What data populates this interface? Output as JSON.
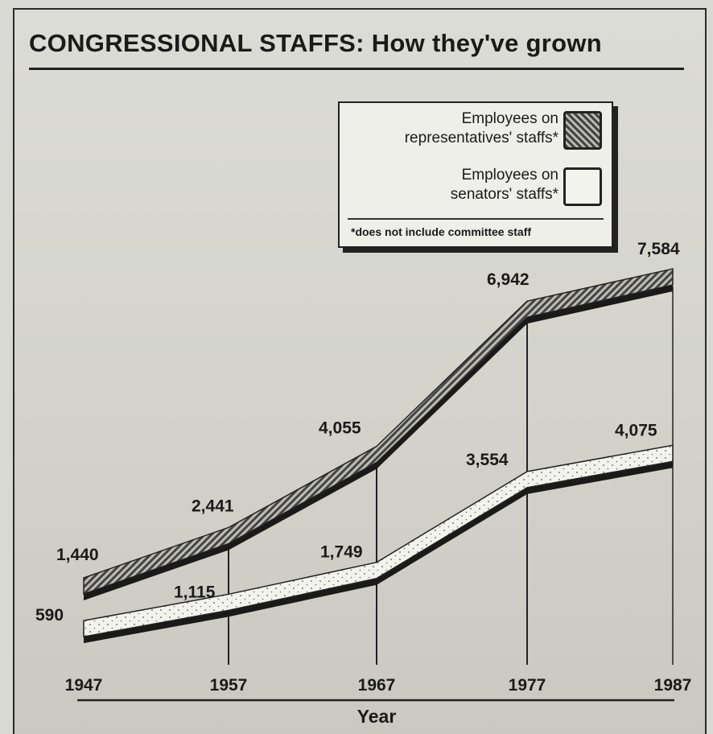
{
  "chart_data": {
    "type": "area",
    "title": "CONGRESSIONAL STAFFS: How they've grown",
    "xlabel": "Year",
    "ylabel": "",
    "x": [
      1947,
      1957,
      1967,
      1977,
      1987
    ],
    "ylim": [
      0,
      8000
    ],
    "series": [
      {
        "name": "Employees on representatives' staffs*",
        "values": [
          1440,
          2441,
          4055,
          6942,
          7584
        ],
        "labels": [
          "1,440",
          "2,441",
          "4,055",
          "6,942",
          "7,584"
        ],
        "fill": "hatched"
      },
      {
        "name": "Employees on senators' staffs*",
        "values": [
          590,
          1115,
          1749,
          3554,
          4075
        ],
        "labels": [
          "590",
          "1,115",
          "1,749",
          "3,554",
          "4,075"
        ],
        "fill": "stippled"
      }
    ],
    "footnote": "*does not include committee staff",
    "legend_position": "top-right",
    "grid": false
  },
  "legend": {
    "rep_line1": "Employees on",
    "rep_line2": "representatives' staffs*",
    "sen_line1": "Employees on",
    "sen_line2": "senators' staffs*",
    "note": "*does not include committee staff"
  },
  "colors": {
    "ink": "#1a1a1a",
    "paper": "#d9d9d3",
    "hatch": "#444444",
    "band": "#f3f3ee"
  }
}
